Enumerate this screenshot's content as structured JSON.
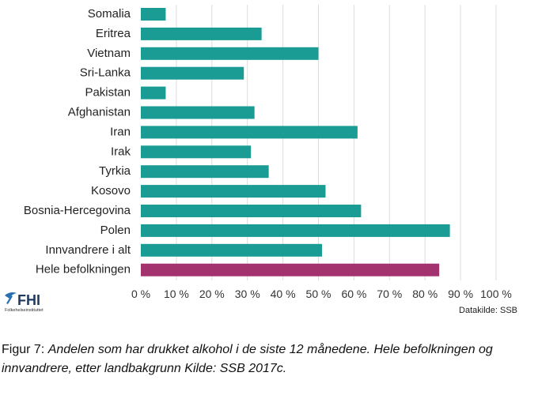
{
  "chart_data": {
    "type": "bar",
    "orientation": "horizontal",
    "categories": [
      "Somalia",
      "Eritrea",
      "Vietnam",
      "Sri-Lanka",
      "Pakistan",
      "Afghanistan",
      "Iran",
      "Irak",
      "Tyrkia",
      "Kosovo",
      "Bosnia-Hercegovina",
      "Polen",
      "Innvandrere i alt",
      "Hele befolkningen"
    ],
    "values": [
      7,
      34,
      50,
      29,
      7,
      32,
      61,
      31,
      36,
      52,
      62,
      87,
      51,
      84
    ],
    "bar_colors": [
      "#1a9c95",
      "#1a9c95",
      "#1a9c95",
      "#1a9c95",
      "#1a9c95",
      "#1a9c95",
      "#1a9c95",
      "#1a9c95",
      "#1a9c95",
      "#1a9c95",
      "#1a9c95",
      "#1a9c95",
      "#1a9c95",
      "#a3336e"
    ],
    "xlim": [
      0,
      100
    ],
    "xticks": [
      0,
      10,
      20,
      30,
      40,
      50,
      60,
      70,
      80,
      90,
      100
    ],
    "xtick_labels": [
      "0 %",
      "10 %",
      "20 %",
      "30 %",
      "40 %",
      "50 %",
      "60 %",
      "70 %",
      "80 %",
      "90 %",
      "100 %"
    ],
    "grid": true,
    "source_note": "Datakilde: SSB"
  },
  "logo": {
    "name": "FHI",
    "subtitle": "Folkehelseinstituttet"
  },
  "caption": {
    "lead": "Figur 7: ",
    "body": "Andelen som har drukket alkohol i de siste 12 månedene. Hele befolkningen og innvandrere, etter landbakgrunn Kilde: SSB 2017c."
  },
  "colors": {
    "teal": "#1a9c95",
    "magenta": "#a3336e"
  }
}
